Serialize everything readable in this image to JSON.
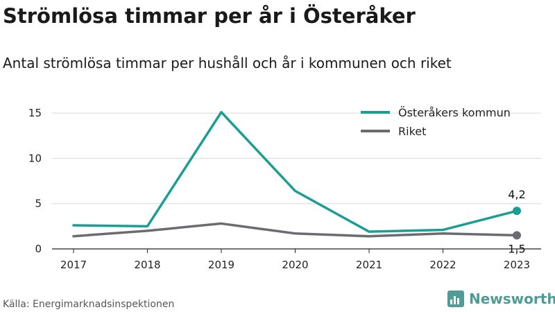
{
  "title": "Strömlösa timmar per år i Österåker",
  "subtitle": "Antal strömlösa timmar per hushåll och år i kommunen och riket",
  "source": "Källa: Energimarknadsinspektionen",
  "brand": {
    "name": "Newsworthy",
    "icon": "bar-chart-logo-icon",
    "color": "#4f9b97"
  },
  "chart_data": {
    "type": "line",
    "x": [
      "2017",
      "2018",
      "2019",
      "2020",
      "2021",
      "2022",
      "2023"
    ],
    "ylim": [
      0,
      16
    ],
    "yticks": [
      "0",
      "5",
      "10",
      "15"
    ],
    "grid": true,
    "legend_position": "top-right",
    "series": [
      {
        "name": "Österåkers kommun",
        "color": "#1a9e94",
        "values": [
          2.6,
          2.5,
          15.1,
          6.4,
          1.9,
          2.1,
          4.2
        ],
        "end_label": "4,2"
      },
      {
        "name": "Riket",
        "color": "#6b6b72",
        "values": [
          1.4,
          2.0,
          2.8,
          1.7,
          1.4,
          1.7,
          1.5
        ],
        "end_label": "1,5"
      }
    ]
  }
}
